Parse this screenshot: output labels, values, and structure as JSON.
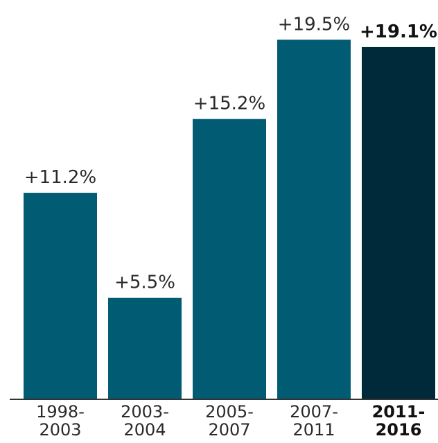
{
  "chart_data": {
    "type": "bar",
    "categories": [
      [
        "1998-",
        "2003"
      ],
      [
        "2003-",
        "2004"
      ],
      [
        "2005-",
        "2007"
      ],
      [
        "2007-",
        "2011"
      ],
      [
        "2011-",
        "2016"
      ]
    ],
    "values": [
      11.2,
      5.5,
      15.2,
      19.5,
      19.1
    ],
    "data_labels": [
      "+11.2%",
      "+5.5%",
      "+15.2%",
      "+19.5%",
      "+19.1%"
    ],
    "highlight_index": 4,
    "colors": {
      "bar": "#005b73",
      "highlight_bar": "#002a3a",
      "axis": "#333333"
    },
    "ylim": [
      0,
      20
    ],
    "grid": false,
    "title": "",
    "xlabel": "",
    "ylabel": ""
  }
}
